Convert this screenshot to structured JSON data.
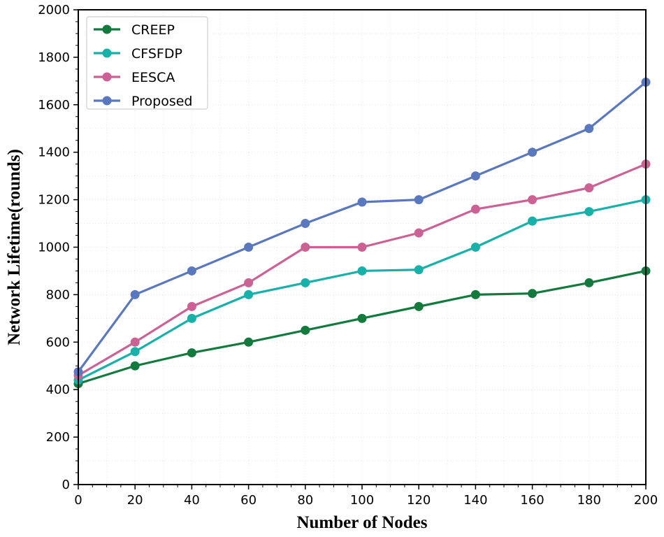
{
  "chart_data": {
    "type": "line",
    "title": "",
    "xlabel": "Number of Nodes",
    "ylabel": "Network Lifetime(rounds)",
    "xlim": [
      0,
      200
    ],
    "ylim": [
      0,
      2000
    ],
    "xticks": [
      0,
      20,
      40,
      60,
      80,
      100,
      120,
      140,
      160,
      180,
      200
    ],
    "yticks": [
      0,
      200,
      400,
      600,
      800,
      1000,
      1200,
      1400,
      1600,
      1800,
      2000
    ],
    "grid": true,
    "legend_position": "top-left",
    "x": [
      0,
      20,
      40,
      60,
      80,
      100,
      120,
      140,
      160,
      180,
      200
    ],
    "series": [
      {
        "name": "CREEP",
        "color": "#127a3d",
        "marker": "circle",
        "values": [
          425,
          500,
          555,
          600,
          650,
          700,
          750,
          800,
          805,
          850,
          900
        ]
      },
      {
        "name": "CFSFDP",
        "color": "#17b1aa",
        "marker": "circle",
        "values": [
          440,
          560,
          700,
          800,
          850,
          900,
          905,
          1000,
          1110,
          1150,
          1200
        ]
      },
      {
        "name": "EESCA",
        "color": "#cc6193",
        "marker": "circle",
        "values": [
          460,
          600,
          750,
          850,
          1000,
          1000,
          1060,
          1160,
          1200,
          1250,
          1350
        ]
      },
      {
        "name": "Proposed",
        "color": "#5a78be",
        "marker": "circle",
        "values": [
          475,
          800,
          900,
          1000,
          1100,
          1190,
          1200,
          1300,
          1400,
          1500,
          1695
        ]
      }
    ]
  }
}
